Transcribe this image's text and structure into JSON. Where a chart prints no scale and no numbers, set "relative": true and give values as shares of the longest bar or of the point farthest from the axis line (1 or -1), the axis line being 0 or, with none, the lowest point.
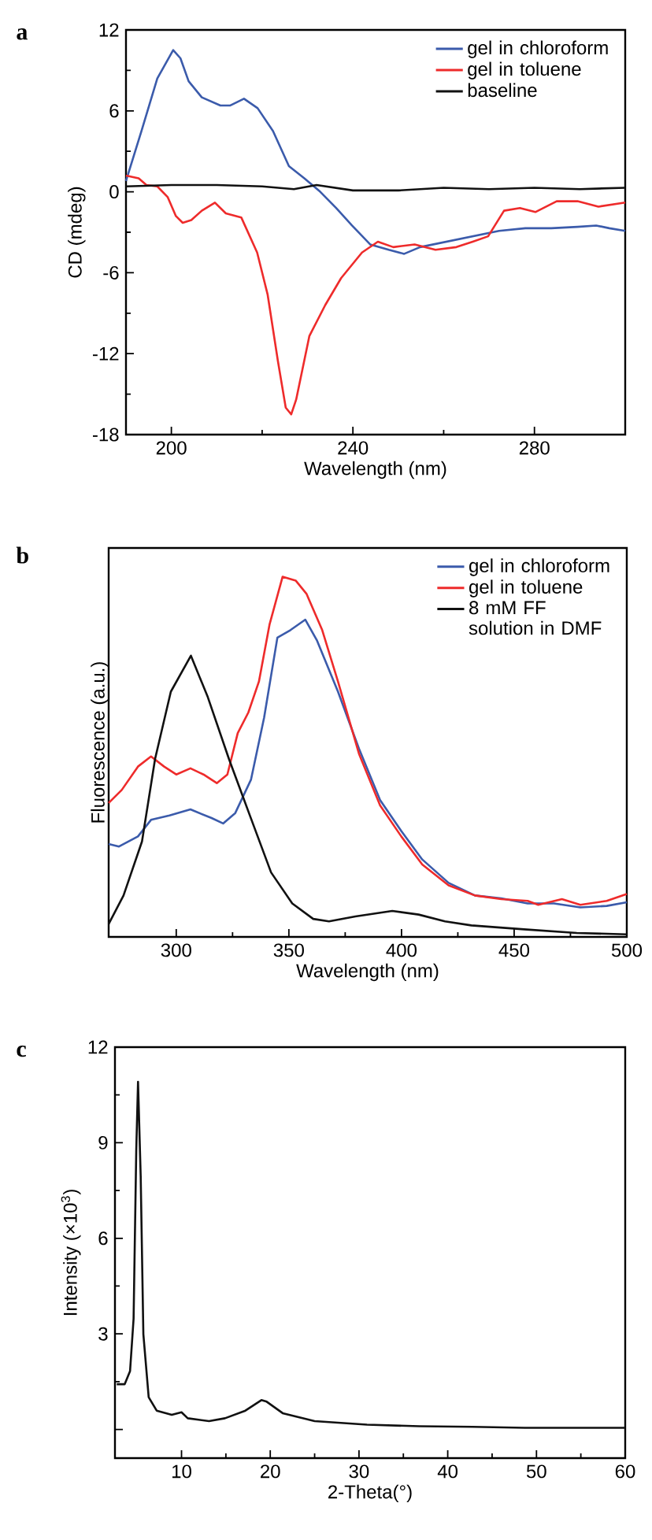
{
  "chart_data": [
    {
      "type": "line",
      "annotations": [
        "a"
      ],
      "xlabel": "Wavelength (nm)",
      "ylabel": "CD (mdeg)",
      "xlim": [
        190,
        300
      ],
      "ylim": [
        -18,
        12
      ],
      "xticks": [
        200,
        240,
        280
      ],
      "yticks": [
        -18,
        -12,
        -6,
        0,
        6,
        12
      ],
      "legend": "top right",
      "series": [
        {
          "name": "gel in chloroform",
          "color": "#3b5bab",
          "x": [
            190,
            193.4,
            196.9,
            200.4,
            202,
            203.8,
            206.7,
            210.8,
            213,
            216,
            219,
            222.4,
            225.9,
            229.3,
            232.8,
            236.3,
            239.8,
            243.8,
            247.9,
            251.3,
            254.8,
            260.6,
            266.4,
            272.2,
            278,
            283.7,
            289.5,
            293.6,
            296.5,
            300
          ],
          "values": [
            0.8,
            4.5,
            8.4,
            10.5,
            9.9,
            8.2,
            7.0,
            6.4,
            6.4,
            6.9,
            6.2,
            4.5,
            1.9,
            1.0,
            0,
            -1.2,
            -2.5,
            -3.9,
            -4.3,
            -4.6,
            -4.1,
            -3.7,
            -3.3,
            -2.9,
            -2.7,
            -2.7,
            -2.6,
            -2.5,
            -2.7,
            -2.9
          ]
        },
        {
          "name": "gel in toluene",
          "color": "#ee2b2b",
          "x": [
            190,
            192.8,
            194.5,
            196.9,
            199.2,
            201,
            202.5,
            204.4,
            206.7,
            209.6,
            212,
            215.4,
            218.9,
            221.2,
            223.5,
            225.2,
            226.4,
            227.5,
            230.4,
            233.9,
            237.4,
            242,
            245.5,
            248.9,
            253.6,
            258.2,
            262.8,
            266.4,
            269.8,
            273.3,
            276.8,
            280.2,
            284.9,
            289.5,
            294.1,
            300
          ],
          "values": [
            1.2,
            1.0,
            0.5,
            0.4,
            -0.4,
            -1.8,
            -2.3,
            -2.1,
            -1.4,
            -0.8,
            -1.6,
            -1.9,
            -4.5,
            -7.6,
            -12.6,
            -16.0,
            -16.5,
            -15.4,
            -10.7,
            -8.4,
            -6.4,
            -4.5,
            -3.7,
            -4.1,
            -3.9,
            -4.3,
            -4.1,
            -3.7,
            -3.3,
            -1.4,
            -1.2,
            -1.5,
            -0.7,
            -0.7,
            -1.1,
            -0.8
          ]
        },
        {
          "name": "baseline",
          "color": "#111111",
          "x": [
            190,
            200,
            210,
            220,
            227,
            232,
            240,
            250,
            260,
            270,
            280,
            290,
            300
          ],
          "values": [
            0.4,
            0.5,
            0.5,
            0.4,
            0.2,
            0.5,
            0.1,
            0.1,
            0.3,
            0.2,
            0.3,
            0.2,
            0.3
          ]
        }
      ]
    },
    {
      "type": "line",
      "annotations": [
        "b"
      ],
      "xlabel": "Wavelength (nm)",
      "ylabel": "Fluorescence (a.u.)",
      "xlim": [
        270,
        500
      ],
      "xticks": [
        300,
        350,
        400,
        450,
        500
      ],
      "relative": true,
      "tick_labels": "x",
      "legend": "top right",
      "series": [
        {
          "name": "gel in chloroform",
          "color": "#3b5bab",
          "x": [
            270,
            274.6,
            283,
            288.8,
            297,
            306.3,
            315.7,
            320.8,
            326.2,
            333.2,
            339,
            344.9,
            350.7,
            357.3,
            362.4,
            371.8,
            381.1,
            390.5,
            399.9,
            409.2,
            420.9,
            432.6,
            444.3,
            456,
            467.7,
            479.4,
            491.1,
            500
          ],
          "values": [
            0.258,
            0.251,
            0.279,
            0.325,
            0.337,
            0.354,
            0.33,
            0.315,
            0.344,
            0.437,
            0.609,
            0.831,
            0.852,
            0.881,
            0.824,
            0.681,
            0.523,
            0.38,
            0.294,
            0.215,
            0.15,
            0.115,
            0.107,
            0.093,
            0.093,
            0.082,
            0.086,
            0.096
          ]
        },
        {
          "name": "gel in toluene",
          "color": "#ee2b2b",
          "x": [
            270,
            275.8,
            283,
            288.8,
            294.6,
            300,
            306.3,
            312.1,
            318,
            322.7,
            327.3,
            332,
            336.7,
            341.4,
            347.2,
            353.1,
            357.8,
            364.8,
            371.8,
            381.1,
            390.5,
            399.9,
            409.2,
            420.9,
            432.6,
            444.3,
            456,
            460.7,
            471.2,
            479.4,
            491.1,
            500
          ],
          "values": [
            0.372,
            0.408,
            0.473,
            0.501,
            0.473,
            0.451,
            0.468,
            0.451,
            0.427,
            0.451,
            0.566,
            0.623,
            0.709,
            0.867,
            1.0,
            0.989,
            0.953,
            0.852,
            0.709,
            0.509,
            0.365,
            0.279,
            0.201,
            0.143,
            0.115,
            0.105,
            0.1,
            0.089,
            0.105,
            0.089,
            0.1,
            0.119
          ]
        },
        {
          "name": "8 mM FF solution in DMF",
          "color": "#111111",
          "x": [
            270,
            276.6,
            284.8,
            290.6,
            297.6,
            306.5,
            314,
            323.4,
            332.7,
            342.1,
            351.5,
            360.8,
            367.8,
            379.5,
            395.9,
            407.6,
            419.3,
            431,
            454.4,
            477.8,
            500
          ],
          "values": [
            0.036,
            0.115,
            0.265,
            0.494,
            0.681,
            0.781,
            0.666,
            0.494,
            0.337,
            0.179,
            0.093,
            0.05,
            0.043,
            0.057,
            0.072,
            0.062,
            0.043,
            0.032,
            0.021,
            0.011,
            0.007
          ]
        }
      ]
    },
    {
      "type": "line",
      "annotations": [
        "c"
      ],
      "xlabel": "2-Theta(°)",
      "ylabel": "Intensity (×10$^{3}$)",
      "xlim": [
        2.5,
        60
      ],
      "ylim": [
        -0.9,
        12
      ],
      "xticks": [
        10,
        20,
        30,
        40,
        50,
        60
      ],
      "yticks": [
        {
          "value": 0,
          "label": null
        },
        3,
        6,
        9,
        12
      ],
      "series": [
        {
          "color": "#111111",
          "x": [
            2.7,
            3.6,
            4.2,
            4.6,
            4.9,
            5.1,
            5.4,
            5.7,
            6.3,
            7.2,
            8.9,
            10,
            10.7,
            13.1,
            14.9,
            17.2,
            19,
            19.6,
            21.4,
            25,
            30.9,
            36.8,
            42.8,
            48.7,
            60
          ],
          "values": [
            1.42,
            1.42,
            1.83,
            3.48,
            8.77,
            10.91,
            7.94,
            2.99,
            1.01,
            0.59,
            0.46,
            0.54,
            0.35,
            0.26,
            0.35,
            0.59,
            0.92,
            0.87,
            0.51,
            0.26,
            0.15,
            0.1,
            0.08,
            0.05,
            0.05
          ]
        }
      ]
    }
  ]
}
